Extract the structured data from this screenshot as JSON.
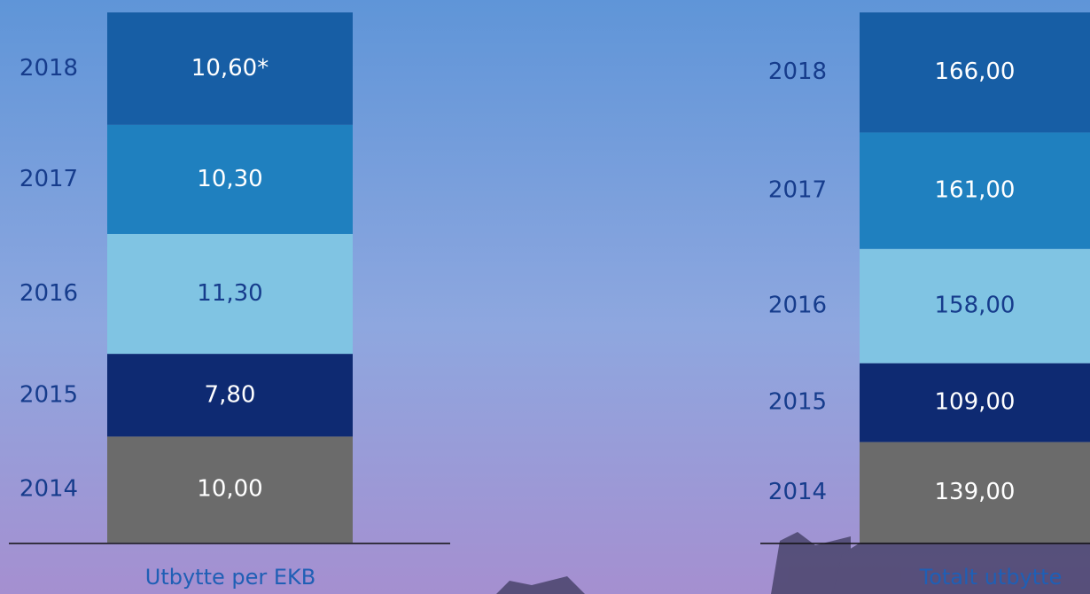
{
  "chart_data": [
    {
      "type": "stacked_bar",
      "title": "Utbytte per EKB",
      "categories": [
        "2014",
        "2015",
        "2016",
        "2017",
        "2018"
      ],
      "values": [
        10.0,
        7.8,
        11.3,
        10.3,
        10.6
      ],
      "value_labels": [
        "10,00",
        "7,80",
        "11,30",
        "10,30",
        "10,60*"
      ],
      "colors": [
        "#6b6b6b",
        "#0e2a72",
        "#80c4e3",
        "#1f80bf",
        "#175ea5"
      ]
    },
    {
      "type": "stacked_bar",
      "title": "Totalt utbytte",
      "categories": [
        "2014",
        "2015",
        "2016",
        "2017",
        "2018"
      ],
      "values": [
        139.0,
        109.0,
        158.0,
        161.0,
        166.0
      ],
      "value_labels": [
        "139,00",
        "109,00",
        "158,00",
        "161,00",
        "166,00"
      ],
      "colors": [
        "#6b6b6b",
        "#0e2a72",
        "#80c4e3",
        "#1f80bf",
        "#175ea5"
      ]
    }
  ]
}
